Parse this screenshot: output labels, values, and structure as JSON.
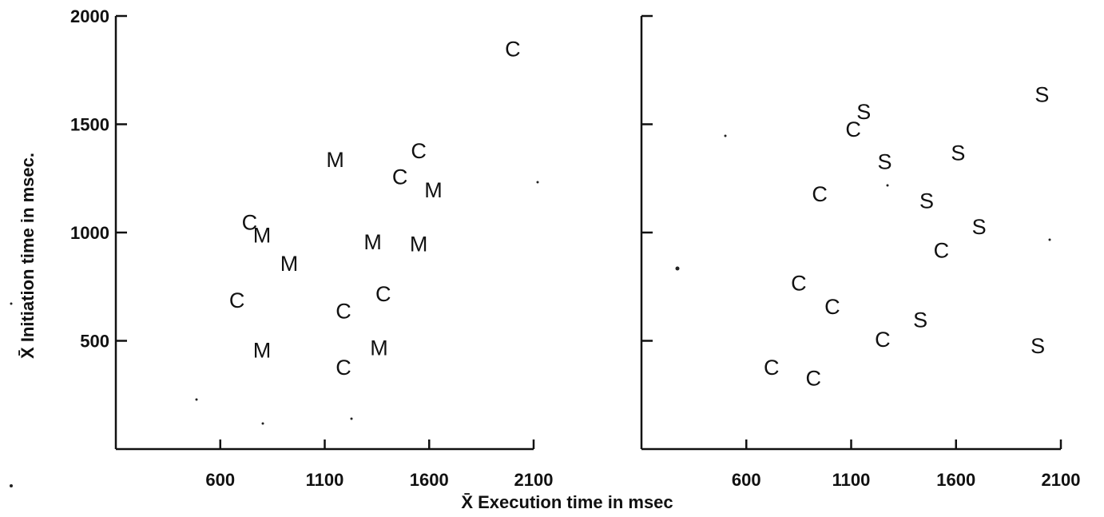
{
  "figure": {
    "xlabel": "X̄ Execution time in msec",
    "ylabel": "X̄ Initiation time in msec."
  },
  "chart_data": [
    {
      "type": "scatter",
      "panel": "left",
      "xlabel": "X̄ Execution time in msec",
      "ylabel": "X̄ Initiation time in msec.",
      "x_ticks": [
        600,
        1100,
        1600,
        2100
      ],
      "y_ticks": [
        500,
        1000,
        1500,
        2000
      ],
      "xlim": [
        100,
        2100
      ],
      "ylim": [
        0,
        2000
      ],
      "grid": false,
      "series": [
        {
          "marker": "C",
          "points": [
            {
              "x": 2000,
              "y": 1850
            },
            {
              "x": 1550,
              "y": 1380
            },
            {
              "x": 1460,
              "y": 1260
            },
            {
              "x": 740,
              "y": 1050
            },
            {
              "x": 680,
              "y": 690
            },
            {
              "x": 1380,
              "y": 720
            },
            {
              "x": 1190,
              "y": 640
            },
            {
              "x": 1190,
              "y": 380
            }
          ]
        },
        {
          "marker": "M",
          "points": [
            {
              "x": 1150,
              "y": 1340
            },
            {
              "x": 1620,
              "y": 1200
            },
            {
              "x": 800,
              "y": 990
            },
            {
              "x": 1330,
              "y": 960
            },
            {
              "x": 1550,
              "y": 950
            },
            {
              "x": 930,
              "y": 860
            },
            {
              "x": 800,
              "y": 460
            },
            {
              "x": 1360,
              "y": 470
            }
          ]
        }
      ]
    },
    {
      "type": "scatter",
      "panel": "right",
      "xlabel": "X̄ Execution time in msec",
      "x_ticks": [
        600,
        1100,
        1600,
        2100
      ],
      "y_ticks": [
        500,
        1000,
        1500,
        2000
      ],
      "xlim": [
        100,
        2100
      ],
      "ylim": [
        0,
        2000
      ],
      "grid": false,
      "series": [
        {
          "marker": "C",
          "points": [
            {
              "x": 1110,
              "y": 1480
            },
            {
              "x": 950,
              "y": 1180
            },
            {
              "x": 1530,
              "y": 920
            },
            {
              "x": 850,
              "y": 770
            },
            {
              "x": 1010,
              "y": 660
            },
            {
              "x": 1250,
              "y": 510
            },
            {
              "x": 720,
              "y": 380
            },
            {
              "x": 920,
              "y": 330
            }
          ]
        },
        {
          "marker": "S",
          "points": [
            {
              "x": 1160,
              "y": 1560
            },
            {
              "x": 2010,
              "y": 1640
            },
            {
              "x": 1610,
              "y": 1370
            },
            {
              "x": 1260,
              "y": 1330
            },
            {
              "x": 1460,
              "y": 1150
            },
            {
              "x": 1710,
              "y": 1030
            },
            {
              "x": 1430,
              "y": 600
            },
            {
              "x": 1990,
              "y": 480
            }
          ]
        }
      ]
    }
  ]
}
